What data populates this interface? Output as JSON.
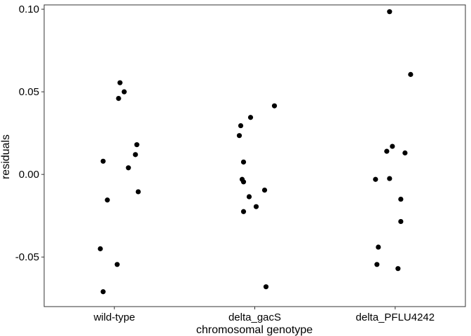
{
  "chart_data": {
    "type": "scatter",
    "title": "",
    "xlabel": "chromosomal genotype",
    "ylabel": "residuals",
    "categories": [
      "wild-type",
      "delta_gacS",
      "delta_PFLU4242"
    ],
    "ylim": [
      -0.08,
      0.1
    ],
    "yticks": [
      -0.05,
      0.0,
      0.05,
      0.1
    ],
    "ytick_labels": [
      "-0.05",
      "0.00",
      "0.05",
      "0.10"
    ],
    "grid": false,
    "legend": "none",
    "point_color": "#000000",
    "series": [
      {
        "category": "wild-type",
        "points": [
          {
            "jitter": 0.04,
            "y": 0.0555
          },
          {
            "jitter": 0.07,
            "y": 0.05
          },
          {
            "jitter": 0.03,
            "y": 0.046
          },
          {
            "jitter": 0.16,
            "y": 0.018
          },
          {
            "jitter": 0.15,
            "y": 0.012
          },
          {
            "jitter": -0.08,
            "y": 0.008
          },
          {
            "jitter": 0.1,
            "y": 0.004
          },
          {
            "jitter": 0.17,
            "y": -0.0105
          },
          {
            "jitter": -0.05,
            "y": -0.0155
          },
          {
            "jitter": -0.1,
            "y": -0.045
          },
          {
            "jitter": 0.02,
            "y": -0.0545
          },
          {
            "jitter": -0.08,
            "y": -0.071
          }
        ]
      },
      {
        "category": "delta_gacS",
        "points": [
          {
            "jitter": 0.14,
            "y": 0.0415
          },
          {
            "jitter": -0.03,
            "y": 0.0345
          },
          {
            "jitter": -0.1,
            "y": 0.0295
          },
          {
            "jitter": -0.11,
            "y": 0.0235
          },
          {
            "jitter": -0.08,
            "y": 0.0075
          },
          {
            "jitter": -0.09,
            "y": -0.003
          },
          {
            "jitter": -0.08,
            "y": -0.0045
          },
          {
            "jitter": 0.07,
            "y": -0.0095
          },
          {
            "jitter": -0.04,
            "y": -0.0135
          },
          {
            "jitter": 0.01,
            "y": -0.0195
          },
          {
            "jitter": -0.08,
            "y": -0.0225
          },
          {
            "jitter": 0.08,
            "y": -0.068
          }
        ]
      },
      {
        "category": "delta_PFLU4242",
        "points": [
          {
            "jitter": -0.04,
            "y": 0.0985
          },
          {
            "jitter": 0.11,
            "y": 0.0605
          },
          {
            "jitter": -0.02,
            "y": 0.017
          },
          {
            "jitter": -0.06,
            "y": 0.014
          },
          {
            "jitter": 0.07,
            "y": 0.013
          },
          {
            "jitter": -0.14,
            "y": -0.003
          },
          {
            "jitter": -0.04,
            "y": -0.0025
          },
          {
            "jitter": 0.04,
            "y": -0.015
          },
          {
            "jitter": 0.04,
            "y": -0.0285
          },
          {
            "jitter": -0.12,
            "y": -0.044
          },
          {
            "jitter": -0.13,
            "y": -0.0545
          },
          {
            "jitter": 0.02,
            "y": -0.057
          }
        ]
      }
    ]
  }
}
